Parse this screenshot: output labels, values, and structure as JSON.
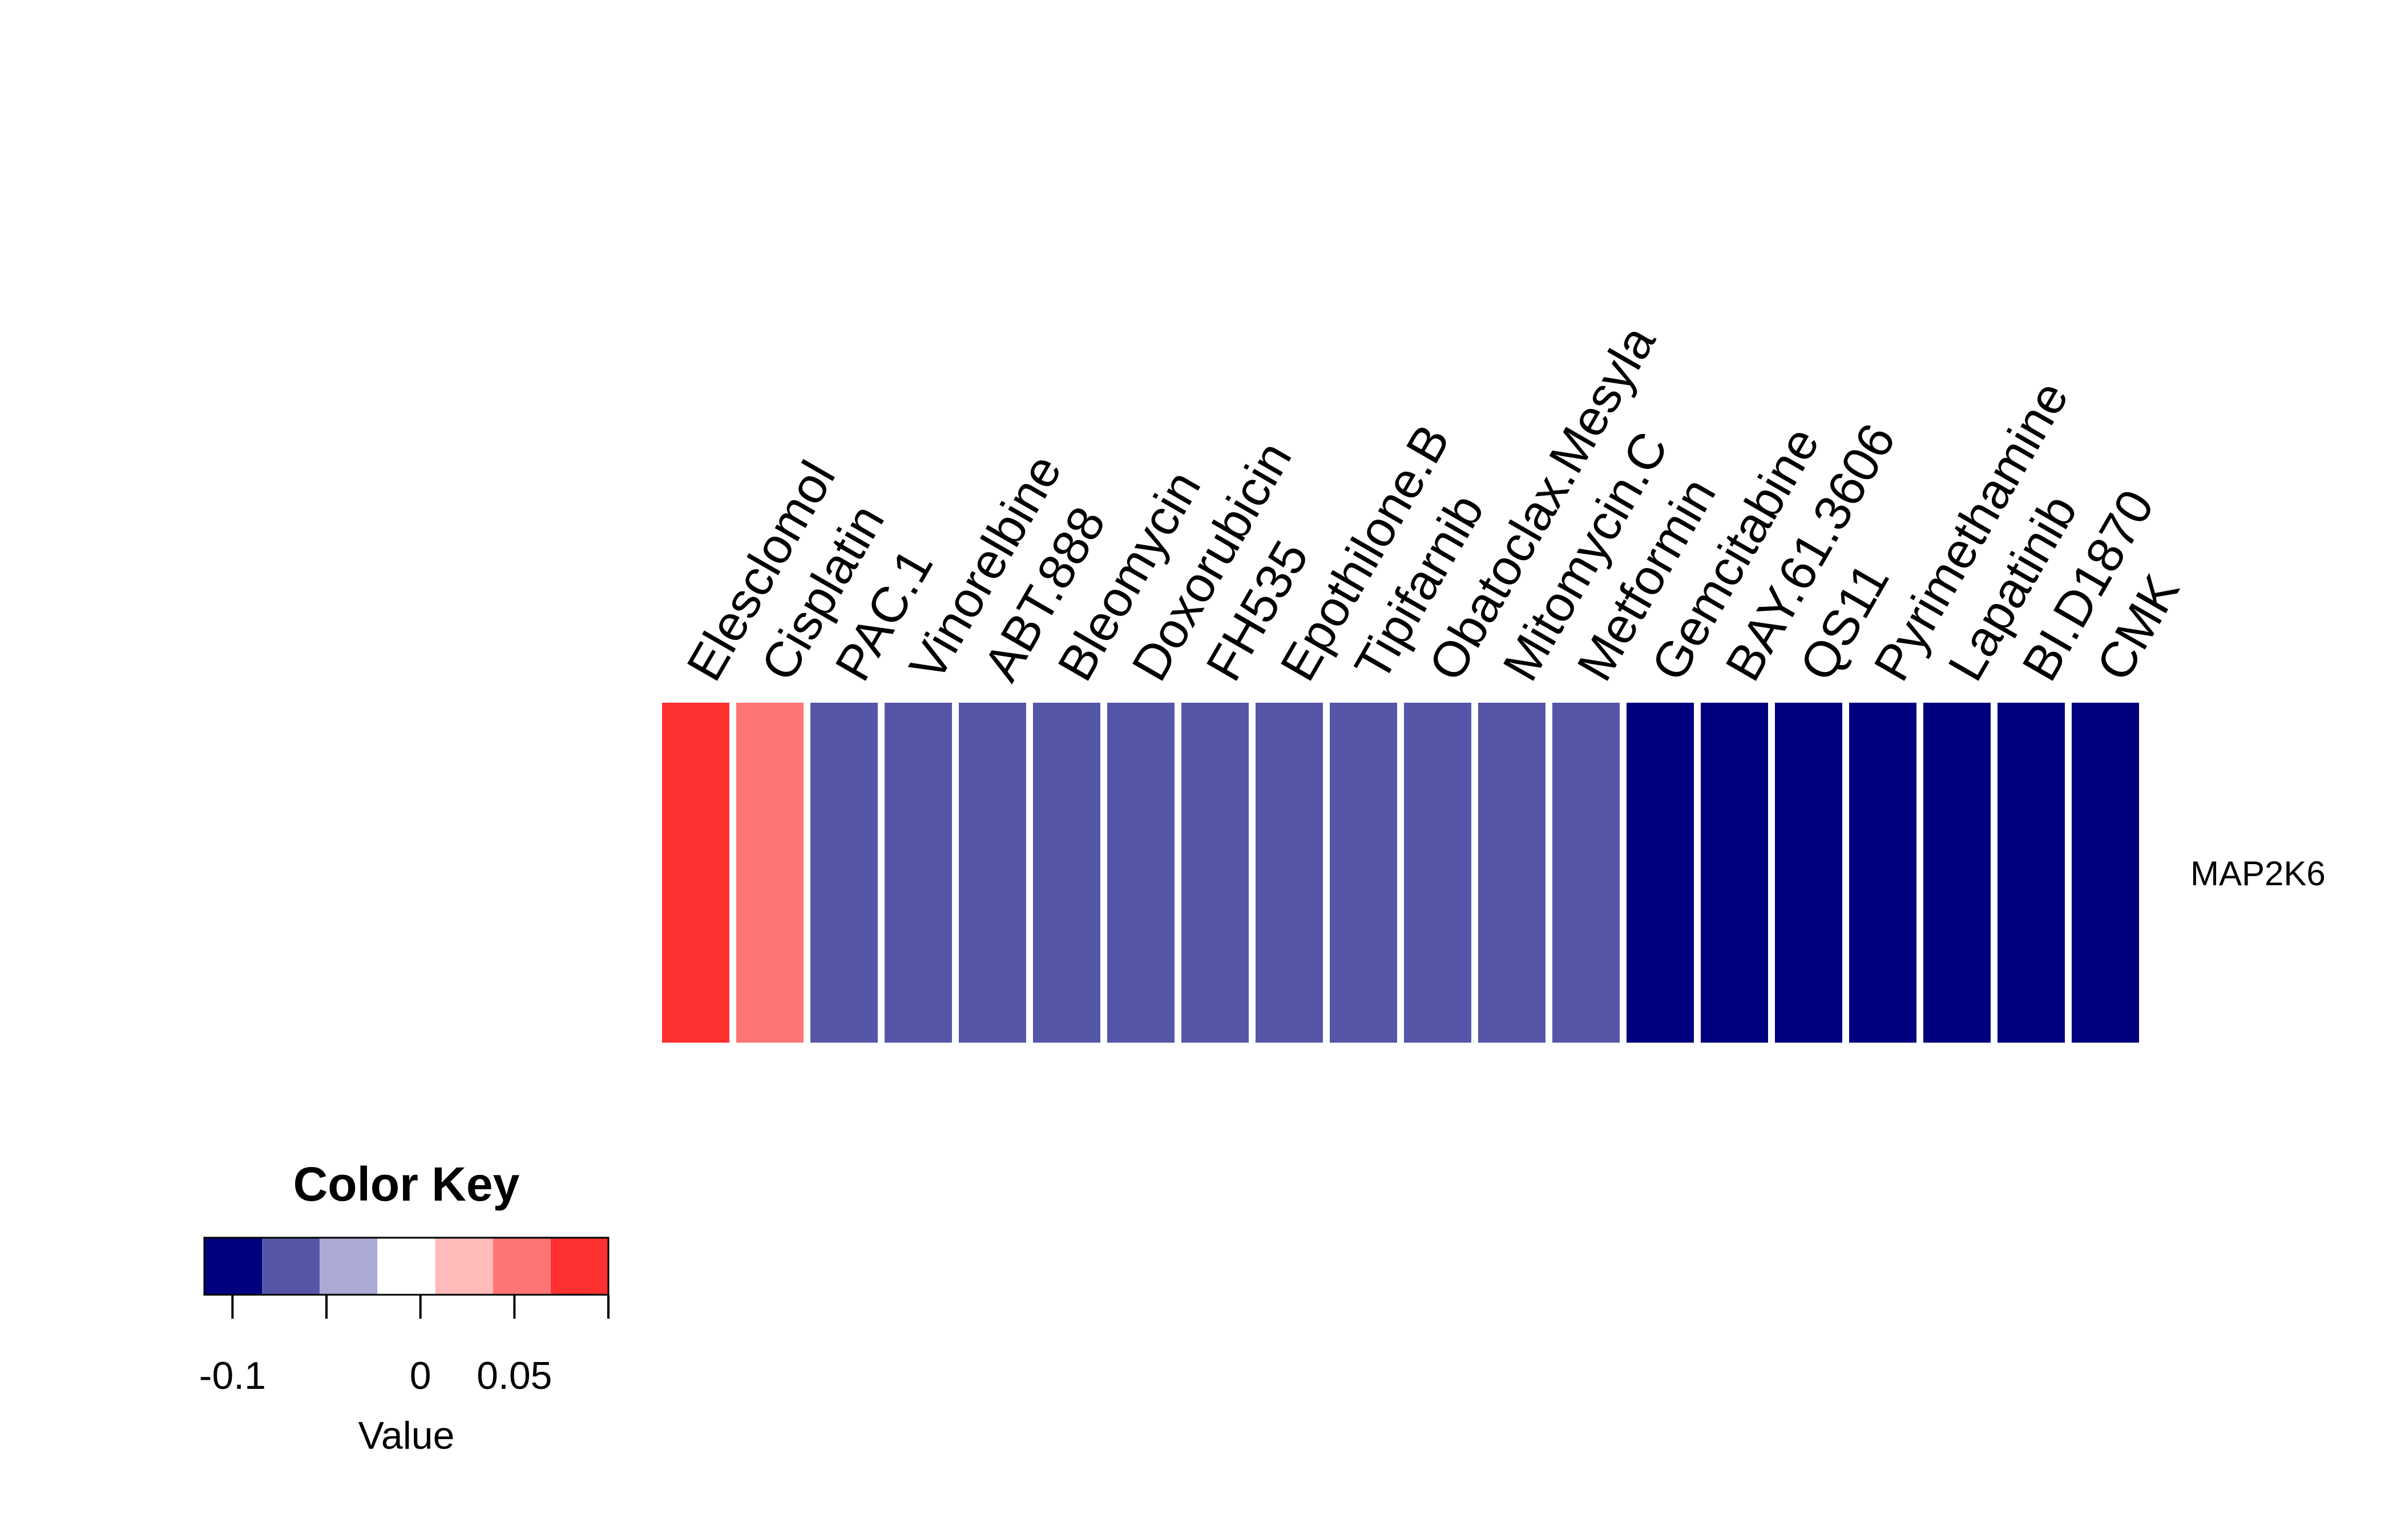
{
  "chart_data": {
    "type": "heatmap",
    "rows": [
      "MAP2K6"
    ],
    "columns": [
      "Elesclomol",
      "Cisplatin",
      "PAC.1",
      "Vinorelbine",
      "ABT.888",
      "Bleomycin",
      "Doxorubicin",
      "FH535",
      "Epothilone.B",
      "Tipifarnib",
      "Obatoclax.Mesyla",
      "Mitomycin.C",
      "Metformin",
      "Gemcitabine",
      "BAY.61.3606",
      "QS11",
      "Pyrimethamine",
      "Lapatinib",
      "BI.D1870",
      "CMK"
    ],
    "values": [
      [
        0.09,
        0.06,
        -0.06,
        -0.06,
        -0.06,
        -0.06,
        -0.06,
        -0.06,
        -0.06,
        -0.06,
        -0.06,
        -0.06,
        -0.06,
        -0.11,
        -0.11,
        -0.11,
        -0.11,
        -0.11,
        -0.11,
        -0.11
      ]
    ],
    "color_key": {
      "title": "Color Key",
      "xlabel": "Value",
      "range": [
        -0.115,
        0.1
      ],
      "breaks": [
        -0.115,
        -0.0843,
        -0.0536,
        -0.0229,
        0.0079,
        0.0386,
        0.0693,
        0.1
      ],
      "colors": [
        "#00007F",
        "#5656A9",
        "#AAAAD4",
        "#FFFFFF",
        "#FFBABA",
        "#FF7575",
        "#FF3030"
      ],
      "tick_values": [
        -0.1,
        -0.05,
        0,
        0.05,
        0.1
      ],
      "tick_labels": [
        "-0.1",
        "",
        "0",
        "0.05",
        ""
      ]
    }
  }
}
